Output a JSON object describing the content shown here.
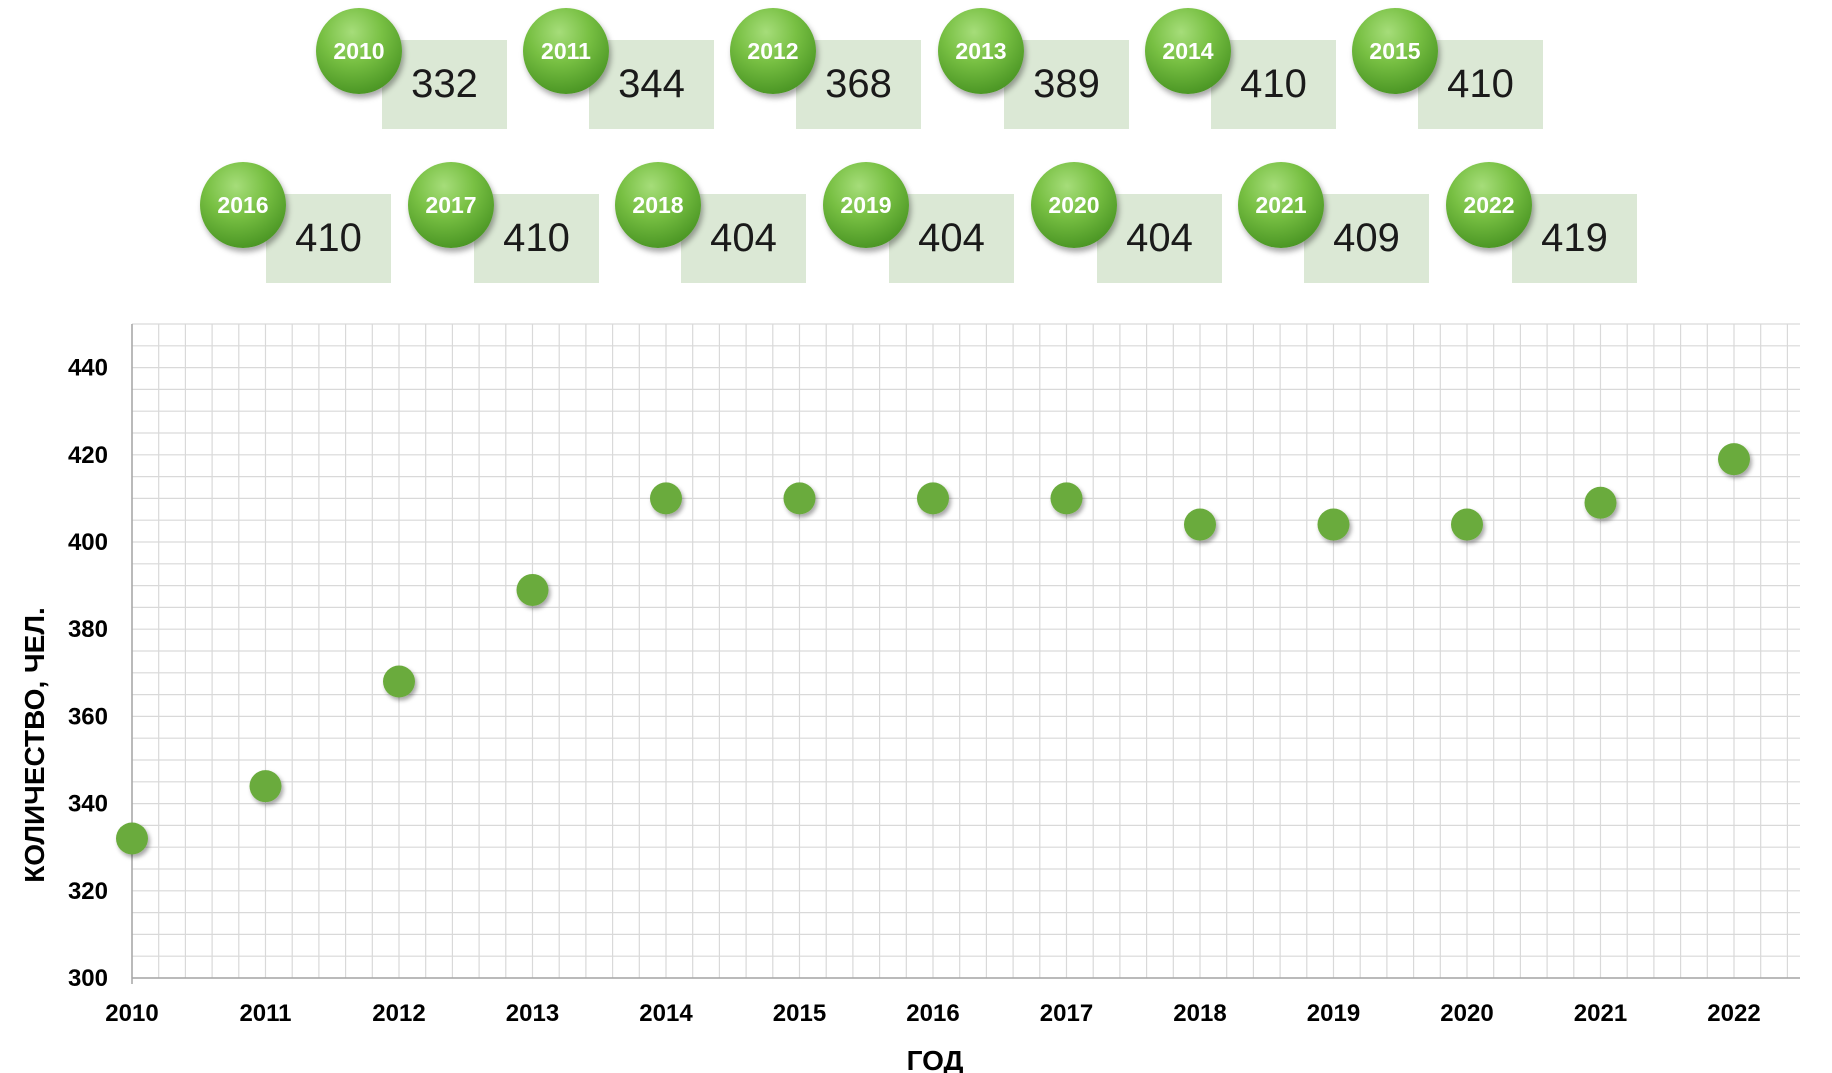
{
  "badges": [
    {
      "year": "2010",
      "value": "332"
    },
    {
      "year": "2011",
      "value": "344"
    },
    {
      "year": "2012",
      "value": "368"
    },
    {
      "year": "2013",
      "value": "389"
    },
    {
      "year": "2014",
      "value": "410"
    },
    {
      "year": "2015",
      "value": "410"
    },
    {
      "year": "2016",
      "value": "410"
    },
    {
      "year": "2017",
      "value": "410"
    },
    {
      "year": "2018",
      "value": "404"
    },
    {
      "year": "2019",
      "value": "404"
    },
    {
      "year": "2020",
      "value": "404"
    },
    {
      "year": "2021",
      "value": "409"
    },
    {
      "year": "2022",
      "value": "419"
    }
  ],
  "colors": {
    "marker": "#6aab3c",
    "badge_box": "#dbe8d5",
    "grid": "#d9d9d9"
  },
  "chart_data": {
    "type": "scatter",
    "x": [
      2010,
      2011,
      2012,
      2013,
      2014,
      2015,
      2016,
      2017,
      2018,
      2019,
      2020,
      2021,
      2022
    ],
    "y": [
      332,
      344,
      368,
      389,
      410,
      410,
      410,
      410,
      404,
      404,
      404,
      409,
      419
    ],
    "xlabel": "ГОД",
    "ylabel": "КОЛИЧЕСТВО, ЧЕЛ.",
    "xlim": [
      2010,
      2022.5
    ],
    "ylim": [
      300,
      450
    ],
    "yticks": [
      300,
      320,
      340,
      360,
      380,
      400,
      420,
      440
    ],
    "xticks": [
      "2010",
      "2011",
      "2012",
      "2013",
      "2014",
      "2015",
      "2016",
      "2017",
      "2018",
      "2019",
      "2020",
      "2021",
      "2022"
    ],
    "grid": true,
    "legend": "none"
  }
}
